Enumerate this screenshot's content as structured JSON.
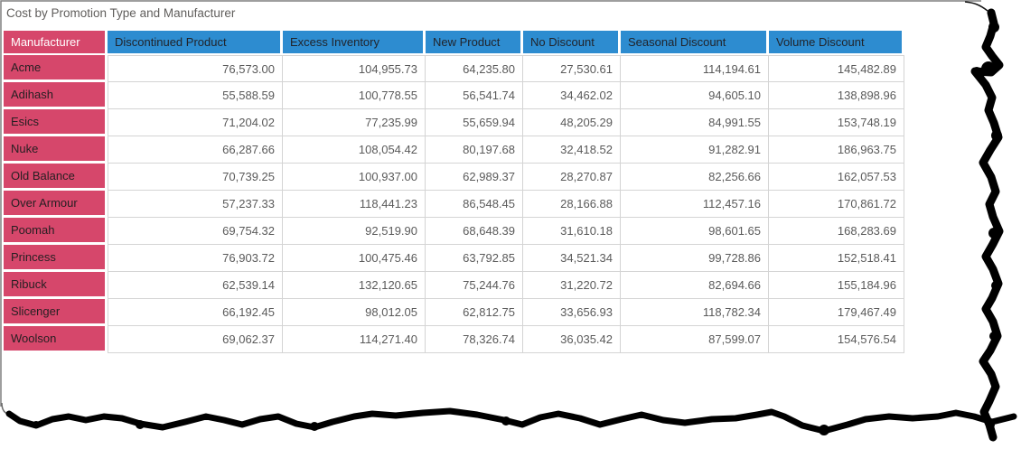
{
  "chart_data": {
    "type": "table",
    "title": "Cost by Promotion Type and Manufacturer",
    "columns": [
      "Manufacturer",
      "Discontinued Product",
      "Excess Inventory",
      "New Product",
      "No Discount",
      "Seasonal Discount",
      "Volume Discount"
    ],
    "rows": [
      [
        "Acme",
        "76,573.00",
        "104,955.73",
        "64,235.80",
        "27,530.61",
        "114,194.61",
        "145,482.89"
      ],
      [
        "Adihash",
        "55,588.59",
        "100,778.55",
        "56,541.74",
        "34,462.02",
        "94,605.10",
        "138,898.96"
      ],
      [
        "Esics",
        "71,204.02",
        "77,235.99",
        "55,659.94",
        "48,205.29",
        "84,991.55",
        "153,748.19"
      ],
      [
        "Nuke",
        "66,287.66",
        "108,054.42",
        "80,197.68",
        "32,418.52",
        "91,282.91",
        "186,963.75"
      ],
      [
        "Old Balance",
        "70,739.25",
        "100,937.00",
        "62,989.37",
        "28,270.87",
        "82,256.66",
        "162,057.53"
      ],
      [
        "Over Armour",
        "57,237.33",
        "118,441.23",
        "86,548.45",
        "28,166.88",
        "112,457.16",
        "170,861.72"
      ],
      [
        "Poomah",
        "69,754.32",
        "92,519.90",
        "68,648.39",
        "31,610.18",
        "98,601.65",
        "168,283.69"
      ],
      [
        "Princess",
        "76,903.72",
        "100,475.46",
        "63,792.85",
        "34,521.34",
        "99,728.86",
        "152,518.41"
      ],
      [
        "Ribuck",
        "62,539.14",
        "132,120.65",
        "75,244.76",
        "31,220.72",
        "82,694.66",
        "155,184.96"
      ],
      [
        "Slicenger",
        "66,192.45",
        "98,012.05",
        "62,812.75",
        "33,656.93",
        "118,782.34",
        "179,467.49"
      ],
      [
        "Woolson",
        "69,062.37",
        "114,271.40",
        "78,326.74",
        "36,035.42",
        "87,599.07",
        "154,576.54"
      ]
    ],
    "layout": {
      "header_position": "top",
      "row_headers": true,
      "grid": true,
      "value_alignment": "right"
    }
  },
  "colors": {
    "title_text": "#605E5C",
    "header_blue": "#2D8CD0",
    "header_red": "#D6476B",
    "header_text": "#21242B",
    "corner_header_text": "#FFFFFF",
    "row_header_text": "#251F22",
    "value_text": "#5A5A5A",
    "gridline": "#D4D4D4",
    "frame_border": "#7E7E7E",
    "torn_edge": "#000000"
  }
}
